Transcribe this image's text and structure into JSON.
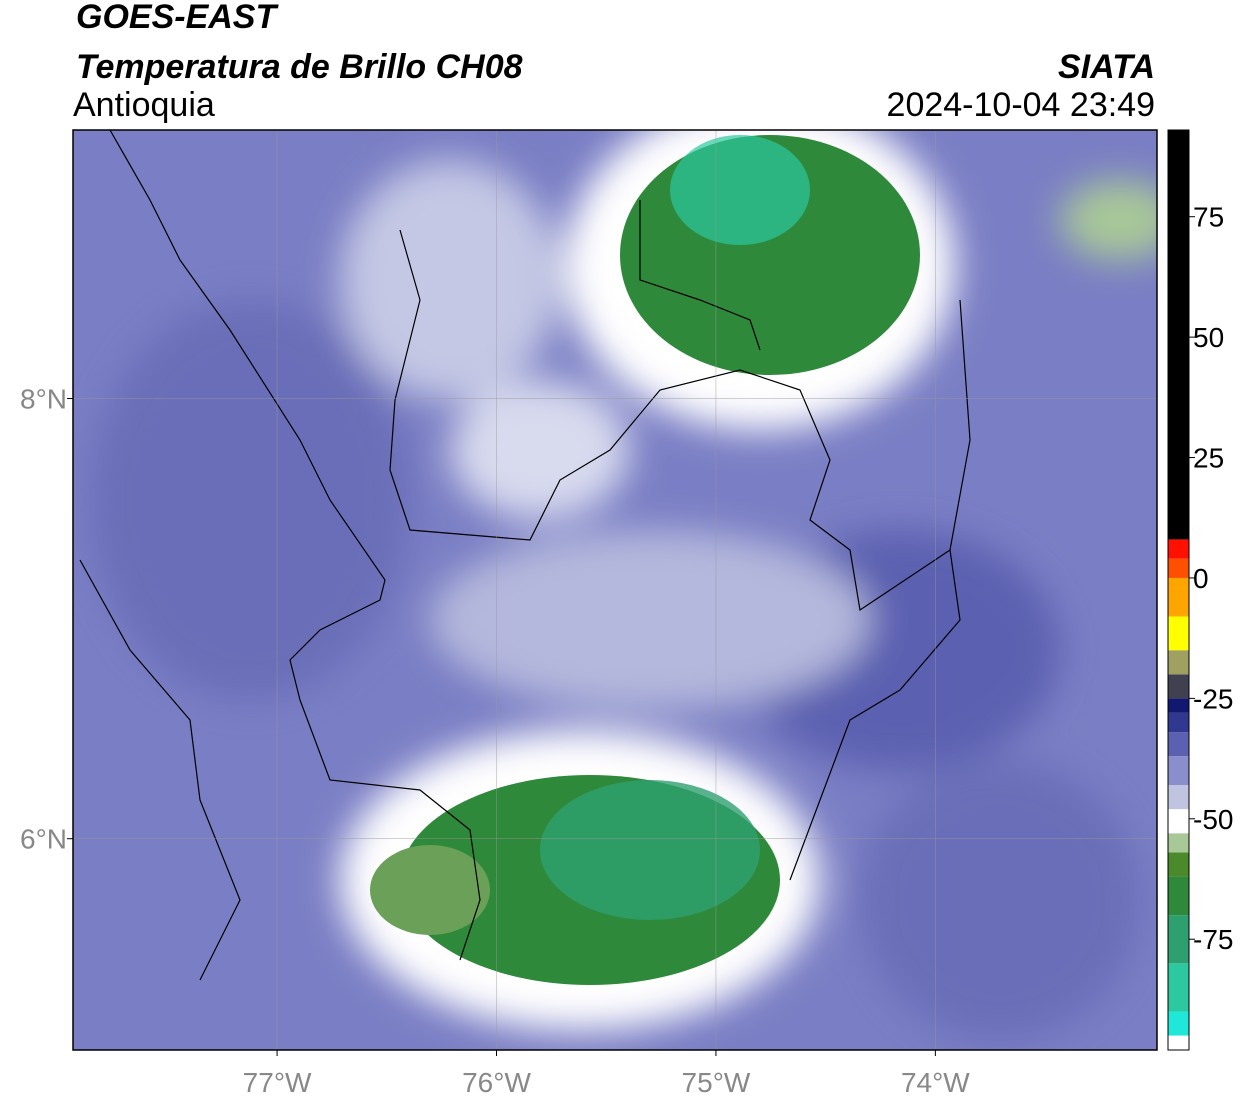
{
  "header": {
    "satellite": "GOES-EAST",
    "product": "Temperatura de Brillo CH08",
    "region": "Antioquia",
    "source": "SIATA",
    "datetime": "2024-10-04 23:49"
  },
  "chart_data": {
    "type": "map",
    "xlim": [
      -77.93,
      -72.99
    ],
    "ylim": [
      5.04,
      9.22
    ],
    "xticks": [
      {
        "value": -77,
        "label": "77°W"
      },
      {
        "value": -76,
        "label": "76°W"
      },
      {
        "value": -75,
        "label": "75°W"
      },
      {
        "value": -74,
        "label": "74°W"
      }
    ],
    "yticks": [
      {
        "value": 6,
        "label": "6°N"
      },
      {
        "value": 8,
        "label": "8°N"
      }
    ],
    "grid": true,
    "colorbar": {
      "clim": [
        -98,
        93
      ],
      "ticks": [
        75,
        50,
        25,
        0,
        -25,
        -50,
        -75
      ],
      "colormap": [
        {
          "value": -98,
          "color": "#ffffff"
        },
        {
          "value": -95,
          "color": "#20e8d8"
        },
        {
          "value": -90,
          "color": "#2cc8a0"
        },
        {
          "value": -80,
          "color": "#2ea070"
        },
        {
          "value": -70,
          "color": "#2e8a3a"
        },
        {
          "value": -62,
          "color": "#4a8a2a"
        },
        {
          "value": -57,
          "color": "#a8c898"
        },
        {
          "value": -53,
          "color": "#ffffff"
        },
        {
          "value": -48,
          "color": "#c0c4e0"
        },
        {
          "value": -43,
          "color": "#8a8ecc"
        },
        {
          "value": -37,
          "color": "#5c60b0"
        },
        {
          "value": -32,
          "color": "#303890"
        },
        {
          "value": -28,
          "color": "#101870"
        },
        {
          "value": -25,
          "color": "#404050"
        },
        {
          "value": -20,
          "color": "#a0a060"
        },
        {
          "value": -15,
          "color": "#ffff00"
        },
        {
          "value": -8,
          "color": "#ffa500"
        },
        {
          "value": 0,
          "color": "#ff5000"
        },
        {
          "value": 4,
          "color": "#ff1000"
        },
        {
          "value": 8,
          "color": "#000000"
        }
      ]
    }
  }
}
